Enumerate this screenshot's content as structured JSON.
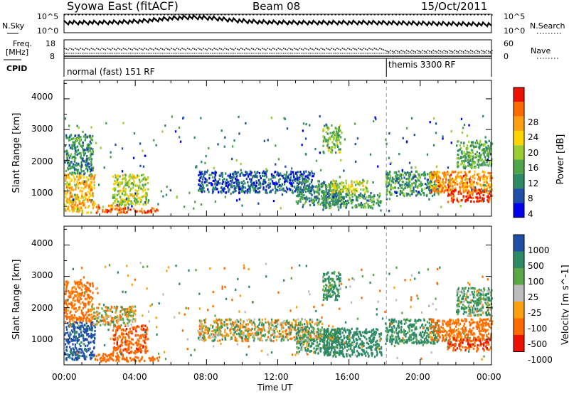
{
  "header": {
    "station": "Syowa East (fitACF)",
    "beam": "Beam 08",
    "date": "15/Oct/2011"
  },
  "top_panels": {
    "nsky_label": "N.Sky",
    "nsky_ticks": [
      "10^5",
      "10^0"
    ],
    "nsearch_label": "N.Search",
    "nsearch_ticks": [
      "10^5",
      "10^0"
    ],
    "freq_label_1": "Freq.",
    "freq_label_2": "[MHz]",
    "freq_ticks": [
      "18",
      "8"
    ],
    "nave_label": "Nave",
    "nave_ticks": [
      "60",
      "0"
    ],
    "cpid_label": "CPID",
    "cpid_modes": [
      {
        "label": "normal (fast) 151 RF",
        "start_hour": 0
      },
      {
        "label": "themis 3300 RF",
        "start_hour": 18.1
      }
    ]
  },
  "x_axis": {
    "label": "Time UT",
    "ticks": [
      "00:00",
      "04:00",
      "08:00",
      "12:00",
      "16:00",
      "20:00",
      "00:00"
    ],
    "range_hours": [
      0,
      24
    ]
  },
  "colors": {
    "power": [
      "#0000ee",
      "#1f4fa8",
      "#2c8a64",
      "#4fa64a",
      "#9acd32",
      "#ffd400",
      "#ff9f10",
      "#ff6a00",
      "#ee1100"
    ],
    "velocity": [
      "#ee1100",
      "#ff6a00",
      "#ff9f10",
      "#bcbcbc",
      "#5aa845",
      "#2c8a64",
      "#1f4fa8"
    ]
  },
  "chart_data": [
    {
      "type": "heatmap",
      "title": "",
      "xlabel": "Time UT",
      "ylabel": "Slant Range [km]",
      "ylim": [
        180,
        4600
      ],
      "yticks": [
        "1000",
        "2000",
        "3000",
        "4000"
      ],
      "colorbar_label": "Power [dB]",
      "colorbar_ticks": [
        "4",
        "8",
        "12",
        "16",
        "20",
        "24",
        "28"
      ],
      "colorbar_range": [
        0,
        32
      ],
      "regions": [
        {
          "t": [
            0.0,
            1.7
          ],
          "r": [
            250,
            1500
          ],
          "v": 22
        },
        {
          "t": [
            0.0,
            1.6
          ],
          "r": [
            1500,
            2800
          ],
          "v": 10
        },
        {
          "t": [
            1.7,
            3.4
          ],
          "r": [
            250,
            500
          ],
          "v": 25
        },
        {
          "t": [
            2.7,
            4.7
          ],
          "r": [
            500,
            1500
          ],
          "v": 17
        },
        {
          "t": [
            3.0,
            5.3
          ],
          "r": [
            250,
            400
          ],
          "v": 26
        },
        {
          "t": [
            7.5,
            14.0
          ],
          "r": [
            900,
            1600
          ],
          "v": 6
        },
        {
          "t": [
            13.0,
            15.5
          ],
          "r": [
            500,
            1300
          ],
          "v": 10
        },
        {
          "t": [
            14.5,
            17.8
          ],
          "r": [
            400,
            900
          ],
          "v": 11
        },
        {
          "t": [
            15.0,
            17.0
          ],
          "r": [
            900,
            1300
          ],
          "v": 17
        },
        {
          "t": [
            14.5,
            15.5
          ],
          "r": [
            2200,
            3100
          ],
          "v": 14
        },
        {
          "t": [
            18.0,
            21.0
          ],
          "r": [
            800,
            1600
          ],
          "v": 11
        },
        {
          "t": [
            20.5,
            24.0
          ],
          "r": [
            900,
            1600
          ],
          "v": 24
        },
        {
          "t": [
            21.5,
            24.0
          ],
          "r": [
            600,
            1000
          ],
          "v": 28
        },
        {
          "t": [
            22.0,
            24.0
          ],
          "r": [
            1700,
            2600
          ],
          "v": 12
        }
      ]
    },
    {
      "type": "heatmap",
      "title": "",
      "xlabel": "Time UT",
      "ylabel": "Slant Range [km]",
      "ylim": [
        180,
        4600
      ],
      "yticks": [
        "1000",
        "2000",
        "3000",
        "4000"
      ],
      "colorbar_label": "Velocity [m s^-1]",
      "colorbar_ticks": [
        "1000",
        "500",
        "100",
        "25",
        "-25",
        "-100",
        "-500",
        "-1000"
      ],
      "colorbar_range": [
        -1000,
        1000
      ],
      "regions": [
        {
          "t": [
            0.0,
            1.7
          ],
          "r": [
            300,
            1500
          ],
          "v": 600
        },
        {
          "t": [
            0.0,
            1.6
          ],
          "r": [
            1500,
            2800
          ],
          "v": -200
        },
        {
          "t": [
            1.7,
            3.4
          ],
          "r": [
            250,
            500
          ],
          "v": -300
        },
        {
          "t": [
            2.7,
            4.7
          ],
          "r": [
            500,
            1400
          ],
          "v": -400
        },
        {
          "t": [
            3.0,
            5.3
          ],
          "r": [
            250,
            400
          ],
          "v": -300
        },
        {
          "t": [
            1.5,
            4.0
          ],
          "r": [
            1400,
            2000
          ],
          "v": 0
        },
        {
          "t": [
            7.5,
            14.5
          ],
          "r": [
            900,
            1600
          ],
          "v": 0
        },
        {
          "t": [
            13.0,
            15.5
          ],
          "r": [
            500,
            1300
          ],
          "v": 100
        },
        {
          "t": [
            14.5,
            17.8
          ],
          "r": [
            400,
            1300
          ],
          "v": 350
        },
        {
          "t": [
            14.5,
            15.5
          ],
          "r": [
            2200,
            3100
          ],
          "v": 150
        },
        {
          "t": [
            18.0,
            21.0
          ],
          "r": [
            800,
            1600
          ],
          "v": 200
        },
        {
          "t": [
            20.5,
            24.0
          ],
          "r": [
            900,
            1600
          ],
          "v": -200
        },
        {
          "t": [
            21.5,
            24.0
          ],
          "r": [
            600,
            1000
          ],
          "v": -500
        },
        {
          "t": [
            22.0,
            24.0
          ],
          "r": [
            1700,
            2600
          ],
          "v": 100
        }
      ]
    }
  ]
}
